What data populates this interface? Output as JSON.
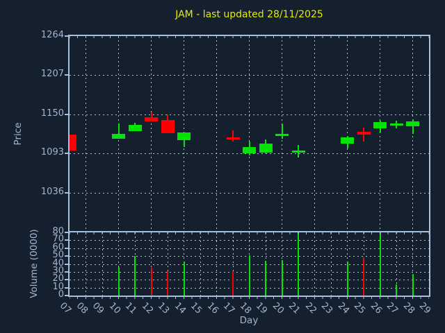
{
  "title": "JAM - last updated 28/11/2025",
  "colors": {
    "background": "#14202e",
    "axis": "#a6c1dd",
    "grid": "#b7c1cb",
    "tick_label": "#9fb6d0",
    "title": "#e8e800",
    "up": "#00e400",
    "down": "#fb0000"
  },
  "chart_data": {
    "type": "candlestick-with-volume-bars",
    "title": "JAM - last updated 28/11/2025",
    "xlabel": "Day",
    "price_ylabel": "Price",
    "volume_ylabel": "Volume (0000)",
    "x_tick_labels": [
      "07",
      "08",
      "09",
      "10",
      "11",
      "12",
      "13",
      "14",
      "15",
      "16",
      "17",
      "18",
      "19",
      "20",
      "21",
      "22",
      "23",
      "24",
      "25",
      "26",
      "27",
      "28",
      "29"
    ],
    "price_tick_labels": [
      "1264",
      "1207",
      "1150",
      "1093",
      "1036"
    ],
    "price_ticks": [
      1264,
      1207,
      1150,
      1093,
      1036
    ],
    "price_axis_range": [
      980,
      1264
    ],
    "price_gridlines": [
      1207,
      1150,
      1093,
      1036
    ],
    "volume_tick_labels": [
      "80",
      "70",
      "60",
      "50",
      "40",
      "30",
      "20",
      "10",
      "0"
    ],
    "volume_ticks": [
      80,
      70,
      60,
      50,
      40,
      30,
      20,
      10,
      0
    ],
    "volume_axis_range": [
      0,
      80
    ],
    "grid": "dashed",
    "legend": "none",
    "candles": [
      {
        "day": "07",
        "open": 1121,
        "high": 1121,
        "low": 1097,
        "close": 1097,
        "direction": "down",
        "volume": null
      },
      {
        "day": "10",
        "open": 1115,
        "high": 1137,
        "low": 1115,
        "close": 1122,
        "direction": "up",
        "volume": 36
      },
      {
        "day": "11",
        "open": 1126,
        "high": 1138,
        "low": 1126,
        "close": 1135,
        "direction": "up",
        "volume": 50
      },
      {
        "day": "12",
        "open": 1146,
        "high": 1153,
        "low": 1140,
        "close": 1140,
        "direction": "down",
        "volume": 35
      },
      {
        "day": "13",
        "open": 1142,
        "high": 1150,
        "low": 1123,
        "close": 1123,
        "direction": "down",
        "volume": 31
      },
      {
        "day": "14",
        "open": 1112,
        "high": 1124,
        "low": 1102,
        "close": 1124,
        "direction": "up",
        "volume": 43
      },
      {
        "day": "17",
        "open": 1117,
        "high": 1127,
        "low": 1110,
        "close": 1116,
        "direction": "down",
        "volume": 31
      },
      {
        "day": "18",
        "open": 1093,
        "high": 1110,
        "low": 1090,
        "close": 1102,
        "direction": "up",
        "volume": 51
      },
      {
        "day": "19",
        "open": 1094,
        "high": 1114,
        "low": 1093,
        "close": 1107,
        "direction": "up",
        "volume": 44
      },
      {
        "day": "20",
        "open": 1120,
        "high": 1136,
        "low": 1114,
        "close": 1122,
        "direction": "up",
        "volume": 45
      },
      {
        "day": "21",
        "open": 1096,
        "high": 1105,
        "low": 1087,
        "close": 1097,
        "direction": "up",
        "volume": 80
      },
      {
        "day": "24",
        "open": 1107,
        "high": 1119,
        "low": 1100,
        "close": 1117,
        "direction": "up",
        "volume": 43
      },
      {
        "day": "25",
        "open": 1125,
        "high": 1131,
        "low": 1110,
        "close": 1121,
        "direction": "down",
        "volume": 48
      },
      {
        "day": "26",
        "open": 1130,
        "high": 1141,
        "low": 1124,
        "close": 1139,
        "direction": "up",
        "volume": 80
      },
      {
        "day": "27",
        "open": 1135,
        "high": 1141,
        "low": 1130,
        "close": 1137,
        "direction": "up",
        "volume": 14
      },
      {
        "day": "28",
        "open": 1133,
        "high": 1143,
        "low": 1122,
        "close": 1140,
        "direction": "up",
        "volume": 27
      }
    ],
    "days_without_data": [
      "08",
      "09",
      "15",
      "16",
      "22",
      "23",
      "29"
    ]
  }
}
